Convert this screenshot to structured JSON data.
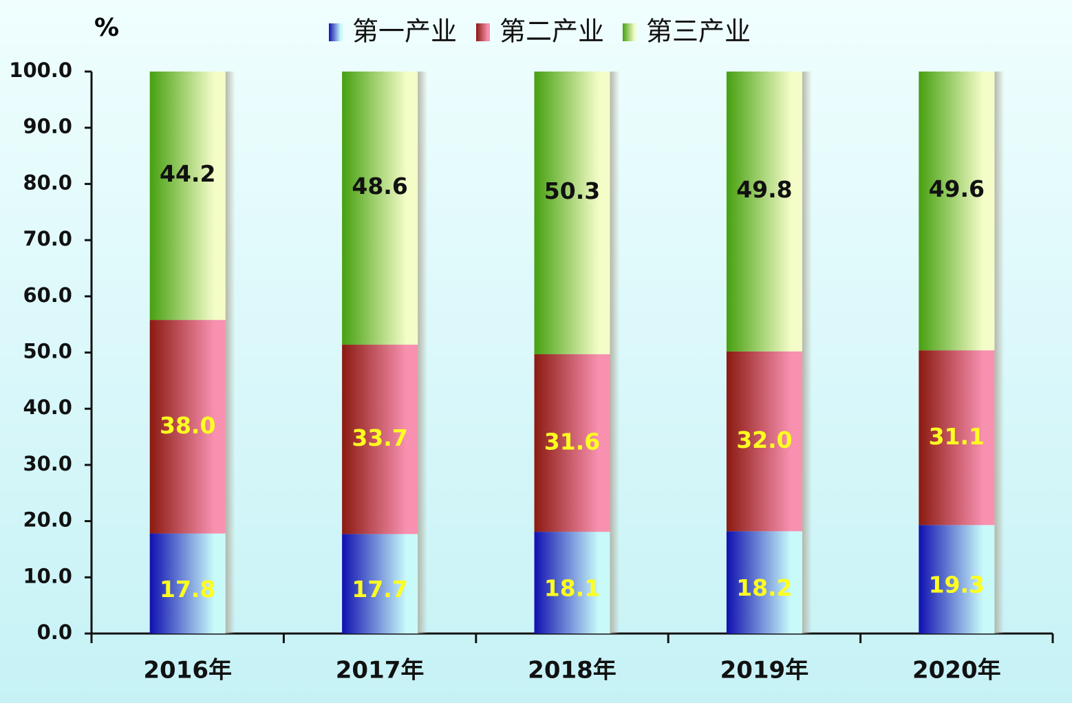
{
  "chart_data": {
    "type": "stacked-bar",
    "y_unit": "%",
    "categories": [
      "2016年",
      "2017年",
      "2018年",
      "2019年",
      "2020年"
    ],
    "series": [
      {
        "name": "第一产业",
        "color": "#1010b0",
        "values": [
          17.8,
          17.7,
          18.1,
          18.2,
          19.3
        ],
        "value_labels": [
          "17.8",
          "17.7",
          "18.1",
          "18.2",
          "19.3"
        ]
      },
      {
        "name": "第二产业",
        "color": "#8b1a10",
        "values": [
          38.0,
          33.7,
          31.6,
          32.0,
          31.1
        ],
        "value_labels": [
          "38.0",
          "33.7",
          "31.6",
          "32.0",
          "31.1"
        ]
      },
      {
        "name": "第三产业",
        "color": "#46a010",
        "values": [
          44.2,
          48.6,
          50.3,
          49.8,
          49.6
        ],
        "value_labels": [
          "44.2",
          "48.6",
          "50.3",
          "49.8",
          "49.6"
        ]
      }
    ],
    "ylim": [
      0,
      100
    ],
    "yticks": [
      {
        "value": 0,
        "label": "0.0"
      },
      {
        "value": 10,
        "label": "10.0"
      },
      {
        "value": 20,
        "label": "20.0"
      },
      {
        "value": 30,
        "label": "30.0"
      },
      {
        "value": 40,
        "label": "40.0"
      },
      {
        "value": 50,
        "label": "50.0"
      },
      {
        "value": 60,
        "label": "60.0"
      },
      {
        "value": 70,
        "label": "70.0"
      },
      {
        "value": 80,
        "label": "80.0"
      },
      {
        "value": 90,
        "label": "90.0"
      },
      {
        "value": 100,
        "label": "100.0"
      }
    ],
    "legend": "top"
  }
}
